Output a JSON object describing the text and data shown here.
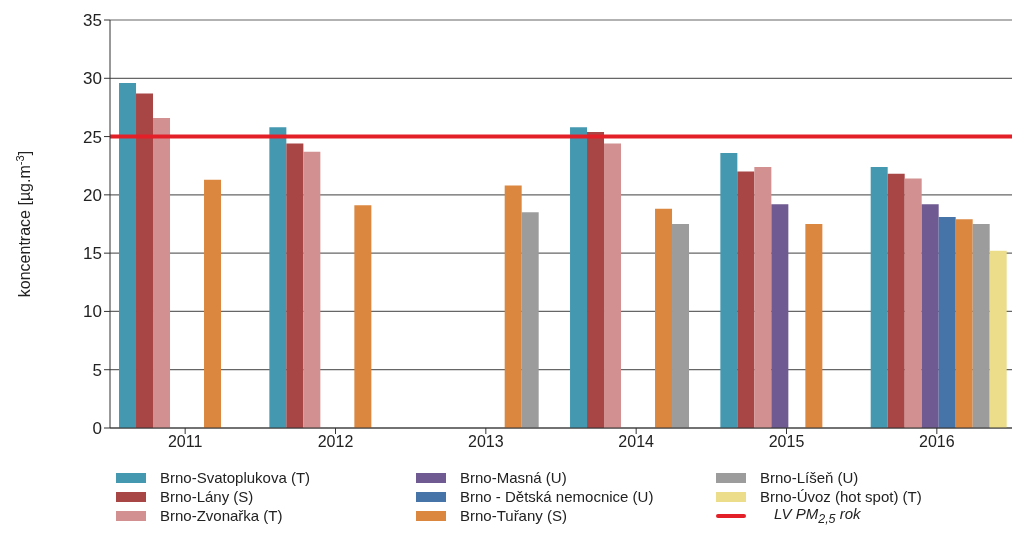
{
  "chart_data": {
    "type": "bar",
    "ylabel": "koncentrace [µg.m$^{-3}$]",
    "categories": [
      "2011",
      "2012",
      "2013",
      "2014",
      "2015",
      "2016"
    ],
    "series": [
      {
        "name": "Brno-Svatoplukova (T)",
        "color": "#4499b1",
        "values": [
          29.6,
          25.8,
          null,
          25.8,
          23.6,
          22.4
        ]
      },
      {
        "name": "Brno-Lány (S)",
        "color": "#a84545",
        "values": [
          28.7,
          24.4,
          null,
          25.4,
          22.0,
          21.8
        ]
      },
      {
        "name": "Brno-Zvonařka (T)",
        "color": "#d29090",
        "values": [
          26.6,
          23.7,
          null,
          24.4,
          22.4,
          21.4
        ]
      },
      {
        "name": "Brno-Masná (U)",
        "color": "#6f5a91",
        "values": [
          null,
          null,
          null,
          null,
          19.2,
          19.2
        ]
      },
      {
        "name": "Brno - Dětská nemocnice (U)",
        "color": "#4673a8",
        "values": [
          null,
          null,
          null,
          null,
          null,
          18.1
        ]
      },
      {
        "name": "Brno-Tuřany (S)",
        "color": "#dc8740",
        "values": [
          21.3,
          19.1,
          20.8,
          18.8,
          17.5,
          17.9
        ]
      },
      {
        "name": "Brno-Líšeň (U)",
        "color": "#9c9c9c",
        "values": [
          null,
          null,
          18.5,
          17.5,
          null,
          17.5
        ]
      },
      {
        "name": "Brno-Úvoz (hot spot) (T)",
        "color": "#ebdd8a",
        "values": [
          null,
          null,
          null,
          null,
          null,
          15.2
        ]
      }
    ],
    "ref_lines": [
      {
        "axis": "y",
        "value": 25,
        "label": "LV PM$_{2,5}$ rok",
        "color": "#e32028"
      }
    ],
    "ylim": [
      0,
      35
    ],
    "yticks": [
      0,
      5,
      10,
      15,
      20,
      25,
      30,
      35
    ],
    "grid": "y",
    "legend": "bottom"
  }
}
